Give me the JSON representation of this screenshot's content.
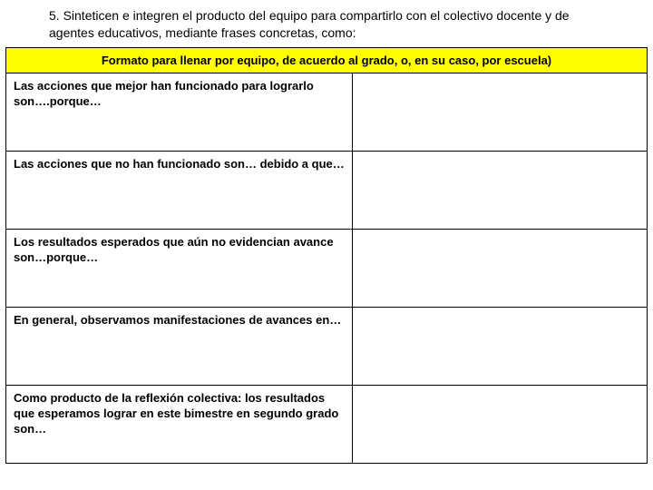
{
  "intro": "5. Sinteticen e integren el producto del equipo para compartirlo con el colectivo docente y de agentes educativos, mediante frases concretas, como:",
  "header": "Formato para llenar por equipo, de acuerdo al grado,  o, en su caso, por escuela)",
  "rows": [
    {
      "label": "Las acciones que mejor han funcionado para lograrlo son….porque…",
      "value": ""
    },
    {
      "label": "Las acciones que no han funcionado son… debido a que…",
      "value": ""
    },
    {
      "label": "Los resultados esperados que aún no evidencian avance son…porque…",
      "value": ""
    },
    {
      "label": "En general, observamos manifestaciones de avances en…",
      "value": ""
    },
    {
      "label": "Como producto de la reflexión colectiva: los resultados que esperamos lograr en este bimestre en segundo grado son…",
      "value": ""
    }
  ],
  "colors": {
    "header_bg": "#ffff00",
    "border": "#000000",
    "text": "#000000",
    "background": "#ffffff"
  }
}
